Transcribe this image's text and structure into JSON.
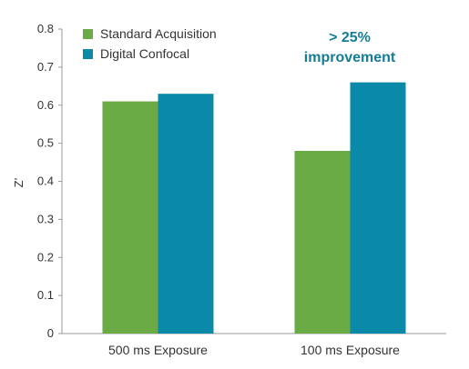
{
  "chart_data": {
    "type": "bar",
    "categories": [
      "500 ms Exposure",
      "100 ms Exposure"
    ],
    "series": [
      {
        "name": "Standard Acquisition",
        "values": [
          0.61,
          0.48
        ],
        "color": "#6aab45"
      },
      {
        "name": "Digital Confocal",
        "values": [
          0.63,
          0.66
        ],
        "color": "#0a8aa8"
      }
    ],
    "ylabel": "Z’",
    "ylim": [
      0,
      0.8
    ],
    "yticks": [
      "0",
      "0.1",
      "0.2",
      "0.3",
      "0.4",
      "0.5",
      "0.6",
      "0.7",
      "0.8"
    ],
    "legend_position": "top-left",
    "annotation": {
      "lines": [
        "> 25%",
        "improvement"
      ],
      "color": "#137e93"
    }
  }
}
